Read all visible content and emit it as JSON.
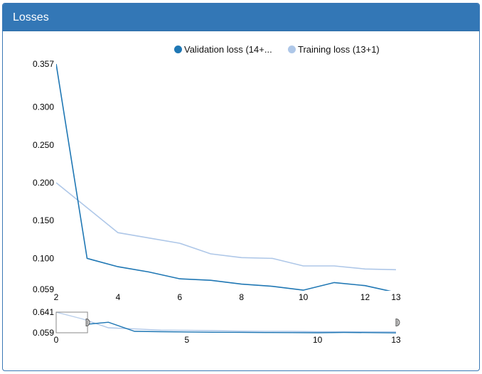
{
  "panel": {
    "title": "Losses"
  },
  "colors": {
    "header": "#3377b6",
    "validation": "#1f77b4",
    "training": "#aec7e8"
  },
  "legend": [
    {
      "label": "Validation loss (14+...",
      "color": "#1f77b4"
    },
    {
      "label": "Training loss (13+1)",
      "color": "#aec7e8"
    }
  ],
  "chart_data": [
    {
      "type": "line",
      "name": "main",
      "xlim": [
        2,
        13
      ],
      "ylim": [
        0.059,
        0.357
      ],
      "xticks": [
        "2",
        "4",
        "6",
        "8",
        "10",
        "12",
        "13"
      ],
      "yticks": [
        "0.357",
        "0.300",
        "0.250",
        "0.200",
        "0.150",
        "0.100",
        "0.059"
      ],
      "series": [
        {
          "name": "Validation loss (14+...",
          "color": "#1f77b4",
          "x": [
            2,
            3,
            4,
            5,
            6,
            7,
            8,
            9,
            10,
            11,
            12,
            13
          ],
          "y": [
            0.357,
            0.1,
            0.089,
            0.082,
            0.073,
            0.071,
            0.066,
            0.063,
            0.058,
            0.068,
            0.064,
            0.055
          ]
        },
        {
          "name": "Training loss (13+1)",
          "color": "#aec7e8",
          "x": [
            2,
            3,
            4,
            5,
            6,
            7,
            8,
            9,
            10,
            11,
            12,
            13
          ],
          "y": [
            0.2,
            0.167,
            0.134,
            0.127,
            0.12,
            0.106,
            0.101,
            0.1,
            0.09,
            0.09,
            0.086,
            0.085
          ]
        }
      ]
    },
    {
      "type": "line",
      "name": "overview",
      "xlim": [
        0,
        13
      ],
      "ylim": [
        0.059,
        0.641
      ],
      "xticks": [
        "0",
        "5",
        "10",
        "13"
      ],
      "yticks": [
        "0.641",
        "0.059"
      ],
      "brush": [
        0,
        1.2
      ],
      "series": [
        {
          "name": "Validation loss (14+...",
          "color": "#1f77b4",
          "x": [
            1.2,
            2,
            3,
            4,
            5,
            6,
            7,
            8,
            9,
            10,
            11,
            12,
            13
          ],
          "y": [
            0.3,
            0.357,
            0.1,
            0.089,
            0.082,
            0.073,
            0.071,
            0.066,
            0.063,
            0.058,
            0.068,
            0.064,
            0.055
          ]
        },
        {
          "name": "Training loss (13+1)",
          "color": "#aec7e8",
          "x": [
            0,
            1,
            2,
            3,
            4,
            5,
            6,
            7,
            8,
            9,
            10,
            11,
            12,
            13
          ],
          "y": [
            0.641,
            0.45,
            0.2,
            0.167,
            0.134,
            0.127,
            0.12,
            0.106,
            0.101,
            0.1,
            0.09,
            0.09,
            0.086,
            0.085
          ]
        }
      ]
    }
  ]
}
